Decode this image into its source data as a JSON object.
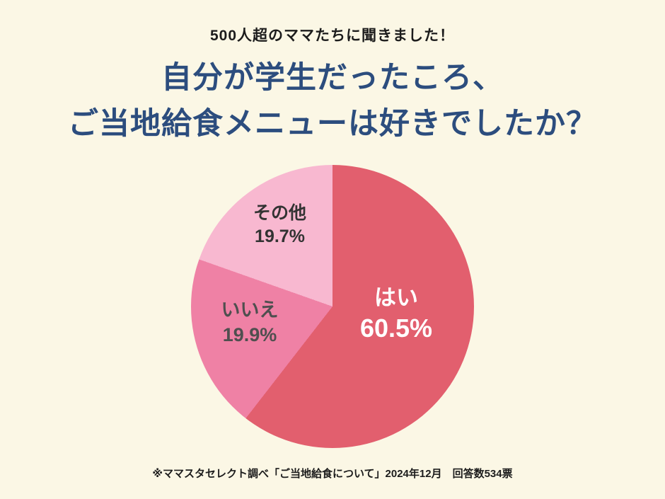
{
  "header": {
    "kicker": "500人超のママたちに聞きました！",
    "title_line1": "自分が学生だったころ、",
    "title_line2": "ご当地給食メニューは好きでしたか？"
  },
  "chart_data": {
    "type": "pie",
    "title": "自分が学生だったころ、ご当地給食メニューは好きでしたか？",
    "categories": [
      "はい",
      "いいえ",
      "その他"
    ],
    "values": [
      60.5,
      19.9,
      19.7
    ],
    "unit": "%",
    "start_angle_deg": 0,
    "direction": "clockwise",
    "legend_position": "inside",
    "slices": [
      {
        "label": "はい",
        "value": 60.5,
        "percent_label": "60.5%",
        "color": "#e25f6e",
        "label_color": "#ffffff"
      },
      {
        "label": "いいえ",
        "value": 19.9,
        "percent_label": "19.9%",
        "color": "#ef81a5",
        "label_color": "#4f4f4f"
      },
      {
        "label": "その他",
        "value": 19.7,
        "percent_label": "19.7%",
        "color": "#f8b8d0",
        "label_color": "#333333"
      }
    ]
  },
  "footer": {
    "source": "※ママスタセレクト調べ「ご当地給食について」2024年12月　回答数534票"
  },
  "colors": {
    "background": "#fbf7e5",
    "title": "#2c4d7e"
  }
}
